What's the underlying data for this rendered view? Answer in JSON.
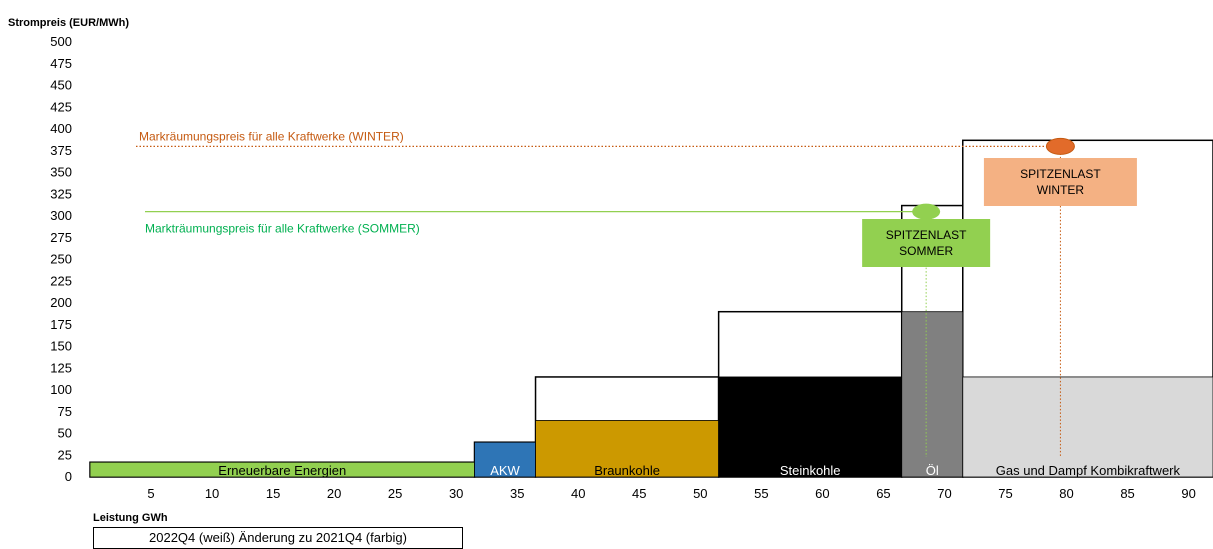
{
  "chart_data": {
    "type": "bar",
    "title": "",
    "ylabel": "Strompreis (EUR/MWh)",
    "xlabel": "Leistung GWh",
    "xlim": [
      0,
      92
    ],
    "ylim": [
      0,
      500
    ],
    "x_ticks": [
      5,
      10,
      15,
      20,
      25,
      30,
      35,
      40,
      45,
      50,
      55,
      60,
      65,
      70,
      75,
      80,
      85,
      90
    ],
    "y_ticks": [
      0,
      25,
      50,
      75,
      100,
      125,
      150,
      175,
      200,
      225,
      250,
      275,
      300,
      325,
      350,
      375,
      400,
      425,
      450,
      475,
      500
    ],
    "legend": "2022Q4 (weiß) Änderung zu 2021Q4 (farbig)",
    "blocks": [
      {
        "label": "Erneuerbare Energien",
        "x0": 0,
        "x1": 31.5,
        "value_2021": 17,
        "value_2022": 17,
        "color": "#92d050",
        "label_color": "#000000"
      },
      {
        "label": "AKW",
        "x0": 31.5,
        "x1": 36.5,
        "value_2021": 40,
        "value_2022": 40,
        "color": "#2e75b6",
        "label_color": "#ffffff"
      },
      {
        "label": "Braunkohle",
        "x0": 36.5,
        "x1": 51.5,
        "value_2021": 65,
        "value_2022": 115,
        "color": "#cc9900",
        "label_color": "#000000"
      },
      {
        "label": "Steinkohle",
        "x0": 51.5,
        "x1": 66.5,
        "value_2021": 115,
        "value_2022": 190,
        "color": "#000000",
        "label_color": "#ffffff"
      },
      {
        "label": "Öl",
        "x0": 66.5,
        "x1": 71.5,
        "value_2021": 190,
        "value_2022": 312,
        "color": "#808080",
        "label_color": "#ffffff"
      },
      {
        "label": "Gas und Dampf Kombikraftwerk",
        "x0": 71.5,
        "x1": 92,
        "value_2021": 115,
        "value_2022": 387,
        "color": "#d9d9d9",
        "label_color": "#000000"
      }
    ],
    "price_lines": [
      {
        "label": "Markräumungspreis für alle Kraftwerke (WINTER)",
        "price": 380,
        "color": "#c55a11",
        "style": "dotted",
        "x_end": 79.5
      },
      {
        "label": "Markträumungspreis für alle Kraftwerke (SOMMER)",
        "price": 305,
        "color": "#92d050",
        "style": "solid",
        "x_end": 67.5
      }
    ],
    "peak_loads": [
      {
        "label_line1": "SPITZENLAST",
        "label_line2": "SOMMER",
        "x": 68.5,
        "price": 305,
        "marker_color": "#92d050",
        "box_color": "#92d050"
      },
      {
        "label_line1": "SPITZENLAST",
        "label_line2": "WINTER",
        "x": 79.5,
        "price": 380,
        "marker_color": "#e26b2a",
        "box_color": "#f4b183"
      }
    ]
  }
}
